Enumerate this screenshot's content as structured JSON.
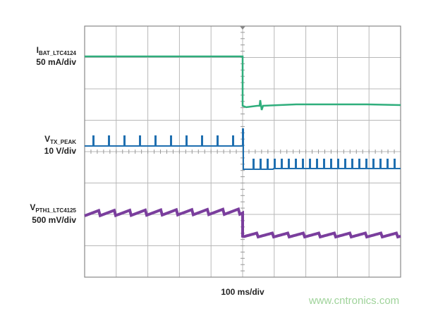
{
  "traces": [
    {
      "symbol": "I",
      "subscript": "BAT_LTC4124",
      "scale": "50 mA/div"
    },
    {
      "symbol": "V",
      "subscript": "TX_PEAK",
      "scale": "10 V/div"
    },
    {
      "symbol": "V",
      "subscript": "PTH1_LTC4125",
      "scale": "500 mV/div"
    }
  ],
  "timebase": "100 ms/div",
  "watermark": "www.cntronics.com"
}
